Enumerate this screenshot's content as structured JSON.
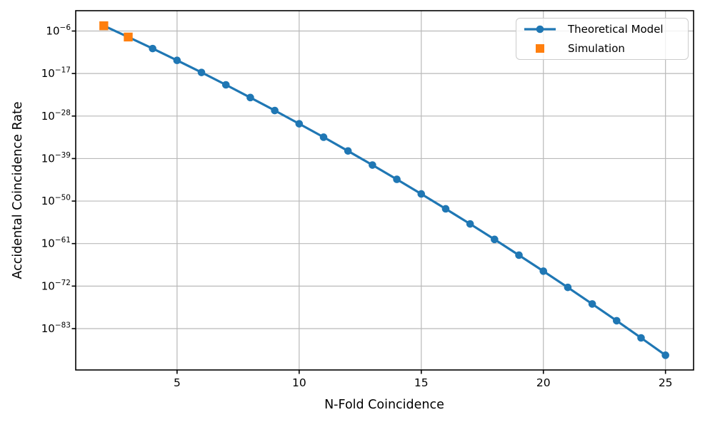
{
  "chart_data": {
    "type": "line",
    "title": "",
    "xlabel": "N-Fold Coincidence",
    "ylabel": "Accidental Coincidence Rate",
    "x_ticks": [
      5,
      10,
      15,
      20,
      25
    ],
    "y_tick_exponents": [
      -6,
      -17,
      -28,
      -39,
      -50,
      -61,
      -72,
      -83
    ],
    "xlim": [
      0.85,
      26.15
    ],
    "ylim_exponents": [
      -93.7,
      -0.74
    ],
    "grid": true,
    "legend_position": "upper right",
    "colors": {
      "theoretical": "#1f77b4",
      "simulation": "#ff7f0e",
      "grid": "#b9b9b9",
      "axis": "#000000"
    },
    "series": [
      {
        "name": "Theoretical Model",
        "type": "line",
        "marker": "circle",
        "x": [
          2,
          3,
          4,
          5,
          6,
          7,
          8,
          9,
          10,
          11,
          12,
          13,
          14,
          15,
          16,
          17,
          18,
          19,
          20,
          21,
          22,
          23,
          24,
          25
        ],
        "y": [
          2.3e-05,
          2.8e-08,
          2.9e-11,
          2.5e-14,
          1.9e-17,
          1.2e-20,
          6.1e-24,
          2.7e-27,
          1e-30,
          3.4e-34,
          9.2e-38,
          2.1e-41,
          4.2e-45,
          6.9e-49,
          9.8e-53,
          1.2e-56,
          1.2e-60,
          1e-64,
          7.4e-69,
          4.6e-73,
          2.4e-77,
          1.1e-81,
          4e-86,
          1.3e-90
        ]
      },
      {
        "name": "Simulation",
        "type": "scatter",
        "marker": "square",
        "x": [
          2,
          3
        ],
        "y": [
          2.3e-05,
          2.8e-08
        ]
      }
    ]
  }
}
